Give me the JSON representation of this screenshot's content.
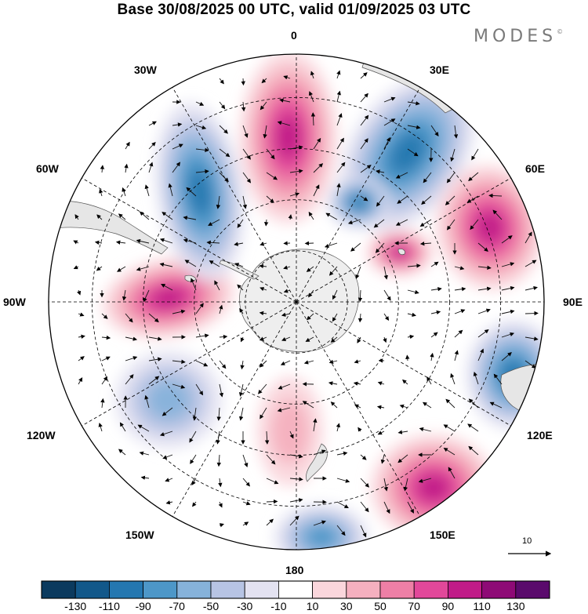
{
  "title": "Base 30/08/2025 00 UTC, valid 01/09/2025 03 UTC",
  "brand": "MODES",
  "brand_mark": "©",
  "longitude_labels": {
    "lon_0": "0",
    "lon_30e": "30E",
    "lon_60e": "60E",
    "lon_90e": "90E",
    "lon_120e": "120E",
    "lon_150e": "150E",
    "lon_180": "180",
    "lon_150w": "150W",
    "lon_120w": "120W",
    "lon_90w": "90W",
    "lon_60w": "60W",
    "lon_30w": "30W"
  },
  "reference_vector": {
    "label": "10",
    "units_note": "wind reference arrow"
  },
  "colorbar": {
    "labels": [
      "-130",
      "-110",
      "-90",
      "-70",
      "-50",
      "-30",
      "-10",
      "10",
      "30",
      "50",
      "70",
      "90",
      "110",
      "130"
    ],
    "colors": [
      "#0b3a5e",
      "#12588a",
      "#2477b0",
      "#4d97c8",
      "#86b2da",
      "#b7c4e4",
      "#e3e2f1",
      "#ffffff",
      "#fad6dc",
      "#f5b0bf",
      "#ee7fa6",
      "#e2489a",
      "#c01b88",
      "#8e0a76",
      "#5a0a6c"
    ]
  },
  "chart_data": {
    "type": "polar-stereographic anomaly map",
    "projection": "South polar stereographic",
    "field": "geopotential height anomaly with wind vectors",
    "contour_levels": [
      -130,
      -110,
      -90,
      -70,
      -50,
      -30,
      -10,
      10,
      30,
      50,
      70,
      90,
      110,
      130
    ],
    "graticule_lon_step_deg": 30,
    "graticule_lat_rings": 4,
    "anomaly_centres": [
      {
        "sign": "positive",
        "peak_class": 90,
        "lon_deg": 5,
        "description": "Atlantic sector ridge near 0"
      },
      {
        "sign": "negative",
        "peak_class": -90,
        "lon_deg": 30,
        "description": "trough near 30E"
      },
      {
        "sign": "negative",
        "peak_class": -90,
        "lon_deg": 30,
        "description": "trough near 30E, inner"
      },
      {
        "sign": "positive",
        "peak_class": 90,
        "lon_deg": 70,
        "description": "ridge near 60E-70E"
      },
      {
        "sign": "positive",
        "peak_class": 90,
        "lon_deg": 70,
        "description": "ridge near 70E, inner"
      },
      {
        "sign": "negative",
        "peak_class": -90,
        "lon_deg": 110,
        "description": "trough near 110E"
      },
      {
        "sign": "positive",
        "peak_class": 90,
        "lon_deg": 140,
        "description": "ridge near 140E"
      },
      {
        "sign": "negative",
        "peak_class": -70,
        "lon_deg": 175,
        "description": "trough near 180"
      },
      {
        "sign": "positive",
        "peak_class": 30,
        "lon_deg": 180,
        "description": "weak ridge near 180"
      },
      {
        "sign": "negative",
        "peak_class": -50,
        "lon_deg": 235,
        "description": "weak trough near 120W"
      },
      {
        "sign": "positive",
        "peak_class": 90,
        "lon_deg": 270,
        "description": "ridge near 90W"
      },
      {
        "sign": "negative",
        "peak_class": -90,
        "lon_deg": 330,
        "description": "trough near 30W"
      }
    ]
  }
}
